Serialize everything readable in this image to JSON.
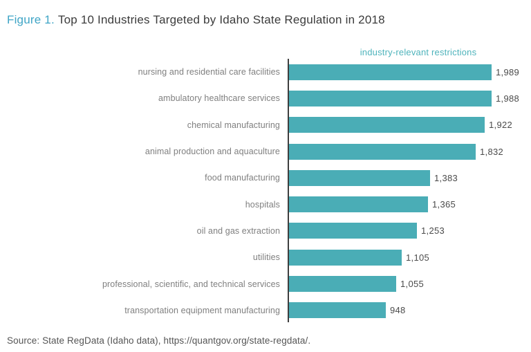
{
  "header": {
    "figure_label": "Figure 1.",
    "title": "Top 10 Industries Targeted by Idaho State Regulation in 2018"
  },
  "chart_data": {
    "type": "bar",
    "orientation": "horizontal",
    "series_label": "industry-relevant restrictions",
    "categories": [
      "nursing and residential care facilities",
      "ambulatory healthcare services",
      "chemical manufacturing",
      "animal production and aquaculture",
      "food manufacturing",
      "hospitals",
      "oil and gas extraction",
      "utilities",
      "professional, scientific, and technical services",
      "transportation equipment manufacturing"
    ],
    "values": [
      1989,
      1988,
      1922,
      1832,
      1383,
      1365,
      1253,
      1105,
      1055,
      948
    ],
    "value_labels": [
      "1,989",
      "1,988",
      "1,922",
      "1,832",
      "1,383",
      "1,365",
      "1,253",
      "1,105",
      "1,055",
      "948"
    ],
    "xlim": [
      0,
      2000
    ],
    "grid": false,
    "legend_position": "top",
    "bar_color": "#4aadb6",
    "axis_color": "#3d3d3d"
  },
  "footer": {
    "source": "Source: State RegData (Idaho data), https://quantgov.org/state-regdata/."
  },
  "colors": {
    "figure_label_text": "#3fa5c6",
    "title_text": "#3b3b3b",
    "series_header_text": "#4db3bb",
    "category_label_text": "#7f7f7f",
    "value_label_text": "#4a4a4a",
    "source_text": "#555555",
    "background": "#ffffff"
  }
}
